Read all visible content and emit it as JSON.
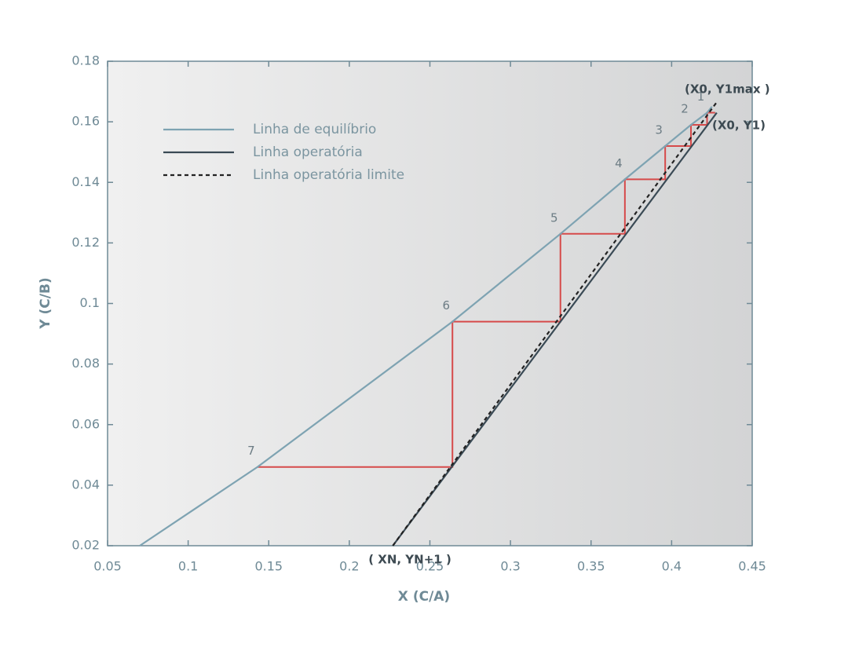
{
  "chart_data": {
    "type": "line",
    "xlabel": "X (C/A)",
    "ylabel": "Y (C/B)",
    "xlim": [
      0.05,
      0.45
    ],
    "ylim": [
      0.02,
      0.18
    ],
    "xticks": [
      0.05,
      0.1,
      0.15,
      0.2,
      0.25,
      0.3,
      0.35,
      0.4,
      0.45
    ],
    "yticks": [
      0.02,
      0.04,
      0.06,
      0.08,
      0.1,
      0.12,
      0.14,
      0.16,
      0.18
    ],
    "series": [
      {
        "name": "Linha de equilíbrio",
        "color": "#7ea3b2",
        "style": "solid",
        "x": [
          0.07,
          0.143,
          0.264,
          0.331,
          0.371,
          0.396,
          0.412,
          0.422,
          0.425
        ],
        "y": [
          0.02,
          0.046,
          0.094,
          0.123,
          0.141,
          0.152,
          0.159,
          0.163,
          0.165
        ]
      },
      {
        "name": "Linha operatória",
        "color": "#3a4a55",
        "style": "solid",
        "x": [
          0.227,
          0.428
        ],
        "y": [
          0.02,
          0.163
        ]
      },
      {
        "name": "Linha operatória limite",
        "color": "#222222",
        "style": "dashed",
        "x": [
          0.227,
          0.428
        ],
        "y": [
          0.02,
          0.1665
        ]
      }
    ],
    "stairs": {
      "color": "#d64a4a",
      "x": [
        0.427,
        0.422,
        0.422,
        0.412,
        0.412,
        0.396,
        0.396,
        0.371,
        0.371,
        0.331,
        0.331,
        0.264,
        0.264,
        0.143
      ],
      "y": [
        0.163,
        0.163,
        0.159,
        0.159,
        0.152,
        0.152,
        0.141,
        0.141,
        0.123,
        0.123,
        0.094,
        0.094,
        0.046,
        0.046
      ]
    },
    "step_labels": [
      "1",
      "2",
      "3",
      "4",
      "5",
      "6",
      "7"
    ],
    "annotations": [
      "(X0, Y1max )",
      "(X0, Y1)",
      "( XN, YN+1 )"
    ]
  }
}
